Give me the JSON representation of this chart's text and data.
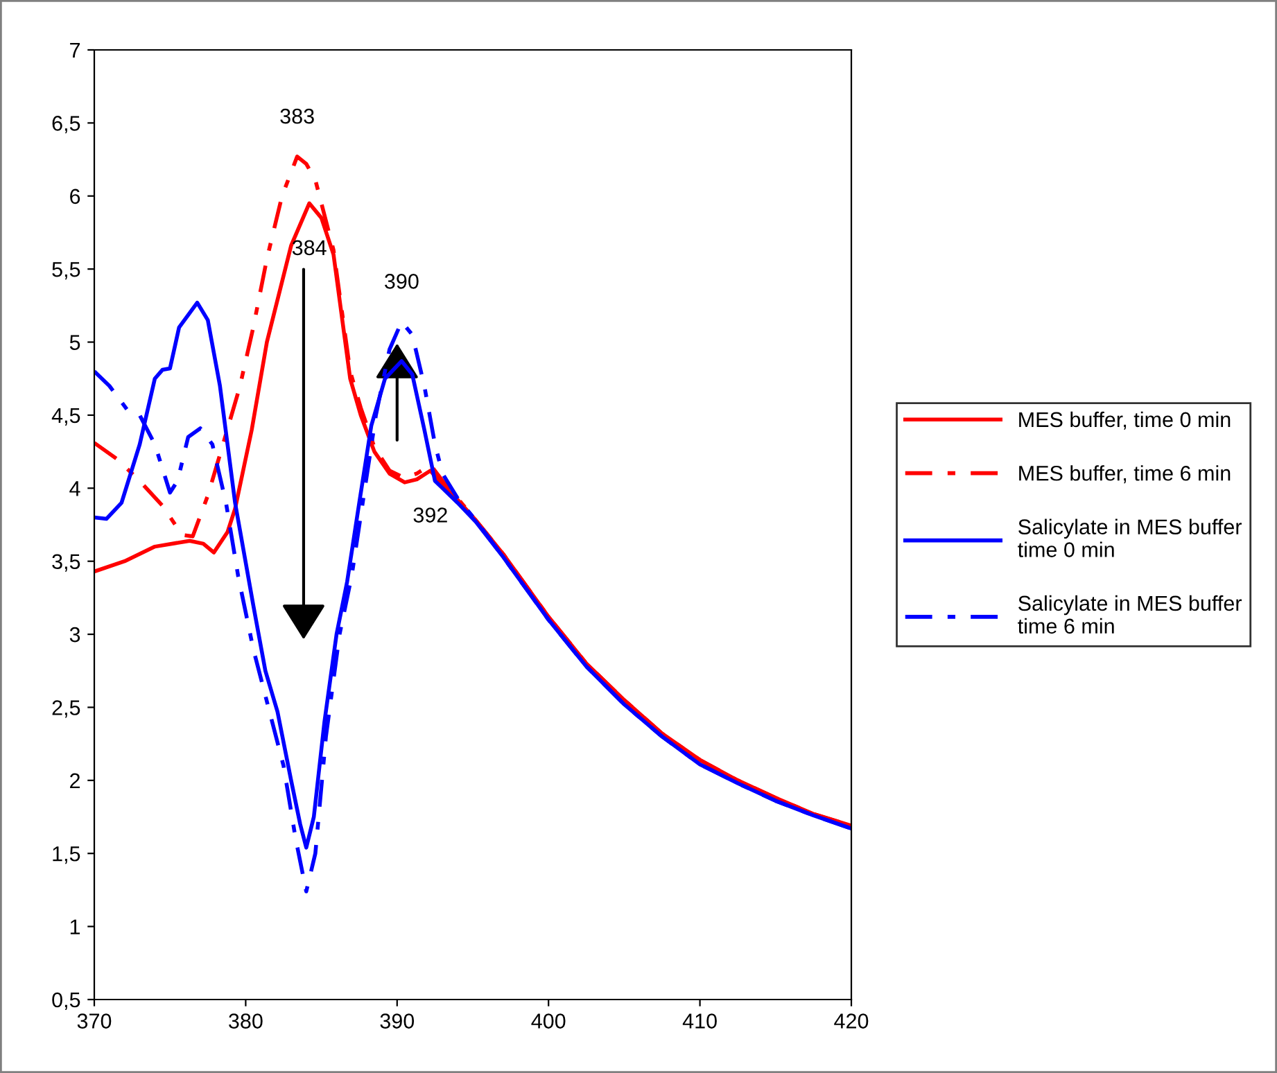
{
  "chart_data": {
    "type": "line",
    "xlim": [
      370,
      420
    ],
    "xticks": [
      370,
      380,
      390,
      400,
      410,
      420
    ],
    "ylim": [
      0.5,
      7
    ],
    "yticks": [
      {
        "value": 0.5,
        "label": "0,5"
      },
      1,
      {
        "value": 1.5,
        "label": "1,5"
      },
      2,
      {
        "value": 2.5,
        "label": "2,5"
      },
      3,
      {
        "value": 3.5,
        "label": "3,5"
      },
      4,
      {
        "value": 4.5,
        "label": "4,5"
      },
      5,
      {
        "value": 5.5,
        "label": "5,5"
      },
      6,
      {
        "value": 6.5,
        "label": "6,5"
      },
      7
    ],
    "grid": false,
    "legend": "right",
    "marker": "none",
    "series": [
      {
        "name": "MES buffer, time 0 min",
        "color": "#ff0000",
        "line_style": "solid",
        "x": [
          370,
          372,
          374,
          376.3,
          377.2,
          377.9,
          378.8,
          379.3,
          380.4,
          381.4,
          383,
          384.2,
          385,
          385.8,
          386.9,
          387.6,
          388.5,
          389.5,
          390.5,
          391.3,
          392.2,
          393,
          394,
          395.2,
          397,
          400,
          402.5,
          405,
          407.5,
          410,
          412.5,
          415,
          417.5,
          420
        ],
        "values": [
          3.43,
          3.5,
          3.6,
          3.64,
          3.62,
          3.56,
          3.7,
          3.86,
          4.4,
          5.0,
          5.66,
          5.95,
          5.85,
          5.6,
          4.75,
          4.5,
          4.25,
          4.1,
          4.04,
          4.06,
          4.12,
          4.02,
          3.92,
          3.78,
          3.55,
          3.12,
          2.8,
          2.55,
          2.32,
          2.14,
          2.0,
          1.88,
          1.77,
          1.69
        ]
      },
      {
        "name": "MES buffer, time 6 min",
        "color": "#ff0000",
        "line_style": "dashed",
        "x": [
          370,
          371.5,
          373,
          374.5,
          375.8,
          376.5,
          377.5,
          378.5,
          379.6,
          380.5,
          381.4,
          382.4,
          383.4,
          384,
          384.6,
          385.8,
          386.9,
          387.6,
          388.5,
          389.5,
          390.5,
          391.3,
          392.2,
          393,
          394,
          395.2,
          397,
          400,
          402.5,
          405,
          407.5,
          410,
          412.5,
          415,
          417.5,
          420
        ],
        "values": [
          4.31,
          4.2,
          4.05,
          3.88,
          3.68,
          3.67,
          3.95,
          4.3,
          4.69,
          5.1,
          5.57,
          6.0,
          6.27,
          6.22,
          6.11,
          5.63,
          4.8,
          4.55,
          4.28,
          4.12,
          4.07,
          4.1,
          4.16,
          4.05,
          3.93,
          3.78,
          3.55,
          3.12,
          2.8,
          2.55,
          2.32,
          2.14,
          2.0,
          1.88,
          1.77,
          1.69
        ]
      },
      {
        "name": "Salicylate in MES buffer\ntime 0 min",
        "color": "#0000ff",
        "line_style": "solid",
        "x": [
          370,
          370.8,
          371.8,
          373,
          374,
          374.5,
          375,
          375.6,
          376.8,
          377.5,
          378.3,
          379.3,
          380.5,
          381.3,
          382.1,
          383,
          383.6,
          384,
          384.5,
          385.2,
          386,
          386.7,
          387.5,
          388.3,
          389.2,
          390.3,
          391,
          391.8,
          392.5,
          393,
          394,
          395.2,
          397,
          400,
          402.5,
          405,
          407.5,
          410,
          412.5,
          415,
          417.5,
          420
        ],
        "values": [
          3.8,
          3.79,
          3.9,
          4.3,
          4.75,
          4.81,
          4.82,
          5.1,
          5.27,
          5.15,
          4.7,
          3.9,
          3.2,
          2.75,
          2.47,
          2.0,
          1.7,
          1.54,
          1.75,
          2.4,
          3.0,
          3.36,
          3.9,
          4.43,
          4.75,
          4.87,
          4.78,
          4.4,
          4.05,
          4.0,
          3.9,
          3.77,
          3.53,
          3.1,
          2.78,
          2.52,
          2.3,
          2.11,
          1.98,
          1.86,
          1.76,
          1.67
        ]
      },
      {
        "name": "Salicylate in MES buffer\ntime 6 min",
        "color": "#0000ff",
        "line_style": "dashed",
        "x": [
          370,
          371,
          372.3,
          373,
          374,
          375,
          375.5,
          376.2,
          377,
          377.8,
          378.7,
          379.5,
          380.5,
          381.5,
          382.5,
          383.3,
          384,
          384.6,
          385.3,
          386.2,
          387,
          387.8,
          388.6,
          389.5,
          390.3,
          391,
          391.8,
          392.5,
          393,
          394,
          395.2,
          397,
          400,
          402.5,
          405,
          407.5,
          410,
          412.5,
          415,
          417.5,
          420
        ],
        "values": [
          4.8,
          4.7,
          4.52,
          4.5,
          4.3,
          3.97,
          4.05,
          4.35,
          4.41,
          4.3,
          3.9,
          3.4,
          2.9,
          2.5,
          2.1,
          1.6,
          1.24,
          1.5,
          2.3,
          3.0,
          3.4,
          3.95,
          4.5,
          4.95,
          5.14,
          5.05,
          4.7,
          4.3,
          4.1,
          3.93,
          3.78,
          3.53,
          3.1,
          2.78,
          2.52,
          2.3,
          2.11,
          1.98,
          1.86,
          1.76,
          1.67
        ]
      }
    ],
    "annotations": [
      {
        "text": "383",
        "x": 383.4,
        "y": 6.27
      },
      {
        "text": "384",
        "x": 384.2,
        "y": 5.95
      },
      {
        "text": "390",
        "x": 390.3,
        "y": 5.14
      },
      {
        "text": "392",
        "x": 392.2,
        "y": 4.12
      }
    ]
  }
}
